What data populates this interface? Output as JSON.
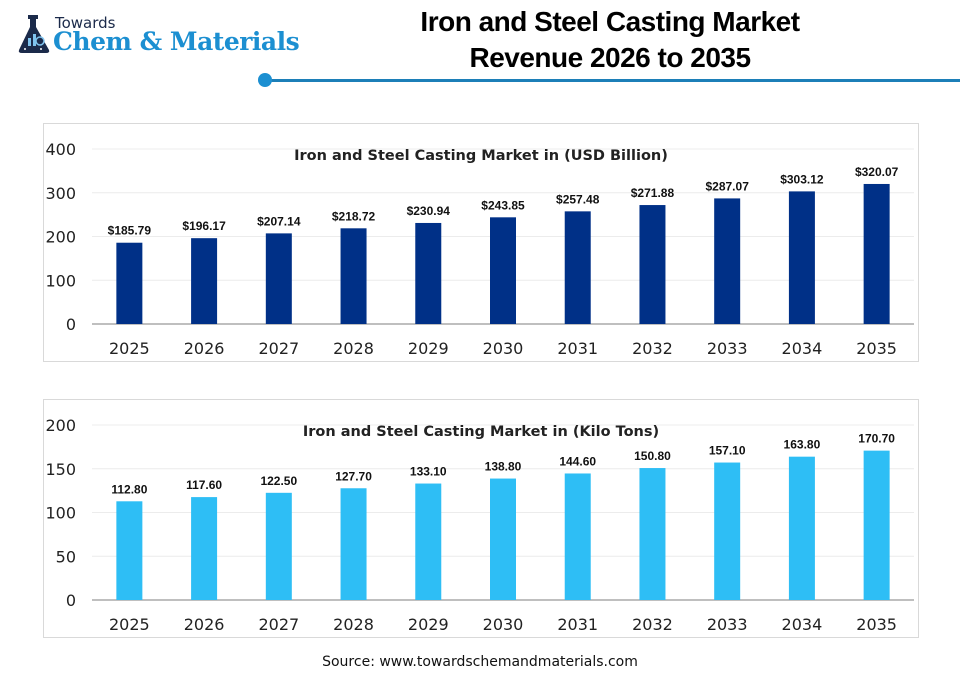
{
  "header": {
    "logo_top": "Towards",
    "logo_main": "Chem & Materials",
    "title_line1": "Iron and Steel Casting Market",
    "title_line2": "Revenue 2026 to 2035"
  },
  "colors": {
    "revenue_bar": "#003087",
    "volume_bar": "#2ebef5",
    "accent_line": "#1c7fb8"
  },
  "source": "Source: www.towardschemandmaterials.com",
  "chart_data": [
    {
      "type": "bar",
      "title": "Iron and Steel Casting Market in (USD Billion)",
      "categories": [
        "2025",
        "2026",
        "2027",
        "2028",
        "2029",
        "2030",
        "2031",
        "2032",
        "2033",
        "2034",
        "2035"
      ],
      "values": [
        185.79,
        196.17,
        207.14,
        218.72,
        230.94,
        243.85,
        257.48,
        271.88,
        287.07,
        303.12,
        320.07
      ],
      "data_labels": [
        "$185.79",
        "$196.17",
        "$207.14",
        "$218.72",
        "$230.94",
        "$243.85",
        "$257.48",
        "$271.88",
        "$287.07",
        "$303.12",
        "$320.07"
      ],
      "xlabel": "",
      "ylabel": "",
      "ylim": [
        0,
        400
      ],
      "yticks": [
        0,
        100,
        200,
        300,
        400
      ],
      "grid": true,
      "legend": "none",
      "color": "#003087"
    },
    {
      "type": "bar",
      "title": "Iron and Steel Casting Market in (Kilo Tons)",
      "categories": [
        "2025",
        "2026",
        "2027",
        "2028",
        "2029",
        "2030",
        "2031",
        "2032",
        "2033",
        "2034",
        "2035"
      ],
      "values": [
        112.8,
        117.6,
        122.5,
        127.7,
        133.1,
        138.8,
        144.6,
        150.8,
        157.1,
        163.8,
        170.7
      ],
      "data_labels": [
        "112.80",
        "117.60",
        "122.50",
        "127.70",
        "133.10",
        "138.80",
        "144.60",
        "150.80",
        "157.10",
        "163.80",
        "170.70"
      ],
      "xlabel": "",
      "ylabel": "",
      "ylim": [
        0,
        200
      ],
      "yticks": [
        0,
        50,
        100,
        150,
        200
      ],
      "grid": true,
      "legend": "none",
      "color": "#2ebef5"
    }
  ]
}
